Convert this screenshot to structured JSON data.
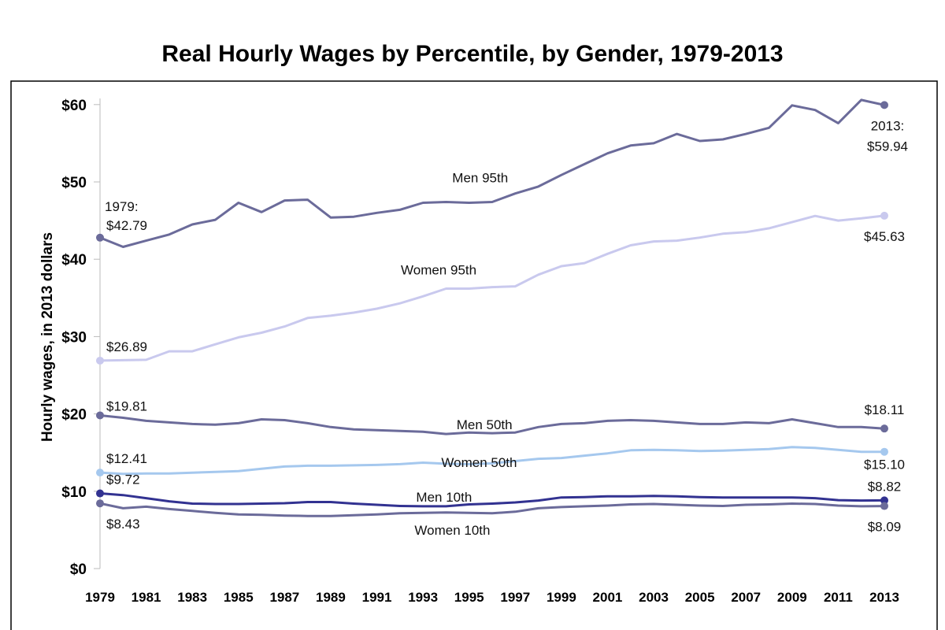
{
  "chart_data": {
    "type": "line",
    "title": "Real Hourly Wages by Percentile, by Gender, 1979-2013",
    "ylabel": "Hourly wages, in 2013 dollars",
    "xlabel": "",
    "x": [
      1979,
      1980,
      1981,
      1982,
      1983,
      1984,
      1985,
      1986,
      1987,
      1988,
      1989,
      1990,
      1991,
      1992,
      1993,
      1994,
      1995,
      1996,
      1997,
      1998,
      1999,
      2000,
      2001,
      2002,
      2003,
      2004,
      2005,
      2006,
      2007,
      2008,
      2009,
      2010,
      2011,
      2012,
      2013
    ],
    "xticks": [
      "1979",
      "1981",
      "1983",
      "1985",
      "1987",
      "1989",
      "1991",
      "1993",
      "1995",
      "1997",
      "1999",
      "2001",
      "2003",
      "2005",
      "2007",
      "2009",
      "2011",
      "2013"
    ],
    "yticks": [
      "$0",
      "$10",
      "$20",
      "$30",
      "$40",
      "$50",
      "$60"
    ],
    "ylim": [
      0,
      62
    ],
    "grid": false,
    "series": [
      {
        "name": "Men 95th",
        "color": "#6b6b9a",
        "values": [
          42.79,
          41.6,
          42.4,
          43.2,
          44.5,
          45.1,
          47.3,
          46.1,
          47.6,
          47.7,
          45.4,
          45.5,
          46.0,
          46.4,
          47.3,
          47.4,
          47.3,
          47.4,
          48.5,
          49.4,
          50.9,
          52.3,
          53.7,
          54.7,
          55.0,
          56.2,
          55.3,
          55.5,
          56.2,
          57.0,
          59.9,
          59.3,
          57.6,
          60.6,
          59.94
        ]
      },
      {
        "name": "Women 95th",
        "color": "#c9c9ee",
        "values": [
          26.89,
          26.95,
          27.0,
          28.1,
          28.1,
          29.0,
          29.9,
          30.5,
          31.3,
          32.4,
          32.7,
          33.1,
          33.6,
          34.3,
          35.2,
          36.2,
          36.2,
          36.4,
          36.5,
          38.0,
          39.1,
          39.5,
          40.7,
          41.8,
          42.3,
          42.4,
          42.8,
          43.3,
          43.5,
          44.0,
          44.8,
          45.6,
          45.0,
          45.3,
          45.63
        ]
      },
      {
        "name": "Men 50th",
        "color": "#6b6b9a",
        "values": [
          19.81,
          19.5,
          19.1,
          18.9,
          18.7,
          18.6,
          18.8,
          19.3,
          19.2,
          18.8,
          18.3,
          18.0,
          17.9,
          17.8,
          17.7,
          17.4,
          17.6,
          17.5,
          17.6,
          18.3,
          18.7,
          18.8,
          19.1,
          19.2,
          19.1,
          18.9,
          18.7,
          18.7,
          18.9,
          18.8,
          19.3,
          18.8,
          18.3,
          18.3,
          18.11
        ]
      },
      {
        "name": "Women 50th",
        "color": "#a5c8ee",
        "values": [
          12.41,
          12.25,
          12.3,
          12.3,
          12.4,
          12.5,
          12.6,
          12.9,
          13.2,
          13.3,
          13.3,
          13.35,
          13.4,
          13.5,
          13.7,
          13.55,
          13.5,
          13.6,
          13.9,
          14.2,
          14.3,
          14.6,
          14.9,
          15.3,
          15.35,
          15.3,
          15.2,
          15.25,
          15.35,
          15.45,
          15.7,
          15.6,
          15.35,
          15.1,
          15.1
        ]
      },
      {
        "name": "Men 10th",
        "color": "#323291",
        "values": [
          9.72,
          9.5,
          9.1,
          8.7,
          8.4,
          8.35,
          8.35,
          8.4,
          8.45,
          8.6,
          8.6,
          8.4,
          8.25,
          8.1,
          8.05,
          8.05,
          8.3,
          8.4,
          8.55,
          8.8,
          9.2,
          9.25,
          9.35,
          9.35,
          9.4,
          9.35,
          9.25,
          9.2,
          9.2,
          9.2,
          9.2,
          9.1,
          8.85,
          8.8,
          8.82
        ]
      },
      {
        "name": "Women 10th",
        "color": "#6b6b9a",
        "values": [
          8.43,
          7.8,
          8.0,
          7.7,
          7.45,
          7.2,
          7.0,
          6.95,
          6.85,
          6.8,
          6.8,
          6.9,
          7.0,
          7.15,
          7.2,
          7.25,
          7.2,
          7.15,
          7.35,
          7.8,
          7.95,
          8.05,
          8.15,
          8.3,
          8.35,
          8.25,
          8.15,
          8.1,
          8.25,
          8.3,
          8.4,
          8.35,
          8.15,
          8.05,
          8.09
        ]
      }
    ],
    "annotations": [
      {
        "text": "1979:",
        "x": 1979,
        "y": 42.79,
        "dx": 6,
        "dy": -34,
        "anchor": "start"
      },
      {
        "text": "$42.79",
        "x": 1979,
        "y": 42.79,
        "dx": 8,
        "dy": -10,
        "anchor": "start"
      },
      {
        "text": "2013:",
        "x": 2013,
        "y": 59.94,
        "dx": 4,
        "dy": 32,
        "anchor": "middle"
      },
      {
        "text": "$59.94",
        "x": 2013,
        "y": 59.94,
        "dx": 4,
        "dy": 58,
        "anchor": "middle"
      },
      {
        "text": "Men 95th",
        "x": 1997,
        "y": 48.5,
        "dx": -80,
        "dy": -14,
        "anchor": "start"
      },
      {
        "text": "$26.89",
        "x": 1979,
        "y": 26.89,
        "dx": 8,
        "dy": -12,
        "anchor": "start"
      },
      {
        "text": "$45.63",
        "x": 2013,
        "y": 45.63,
        "dx": 0,
        "dy": 32,
        "anchor": "middle"
      },
      {
        "text": "Women 95th",
        "x": 1996,
        "y": 36.4,
        "dx": -116,
        "dy": -16,
        "anchor": "start"
      },
      {
        "text": "$19.81",
        "x": 1979,
        "y": 19.81,
        "dx": 8,
        "dy": -6,
        "anchor": "start"
      },
      {
        "text": "$18.11",
        "x": 2013,
        "y": 18.11,
        "dx": 0,
        "dy": -18,
        "anchor": "middle"
      },
      {
        "text": "Men 50th",
        "x": 1995,
        "y": 17.6,
        "dx": -16,
        "dy": -4,
        "anchor": "start"
      },
      {
        "text": "$12.41",
        "x": 1979,
        "y": 12.41,
        "dx": 8,
        "dy": -12,
        "anchor": "start"
      },
      {
        "text": "$15.10",
        "x": 2013,
        "y": 15.1,
        "dx": 0,
        "dy": 22,
        "anchor": "middle"
      },
      {
        "text": "Women 50th",
        "x": 1994,
        "y": 13.55,
        "dx": -6,
        "dy": 4,
        "anchor": "start"
      },
      {
        "text": "$9.72",
        "x": 1979,
        "y": 9.72,
        "dx": 8,
        "dy": -12,
        "anchor": "start"
      },
      {
        "text": "$8.82",
        "x": 2013,
        "y": 8.82,
        "dx": 0,
        "dy": -12,
        "anchor": "middle"
      },
      {
        "text": "Men 10th",
        "x": 1994,
        "y": 8.05,
        "dx": -38,
        "dy": -6,
        "anchor": "start"
      },
      {
        "text": "$8.43",
        "x": 1979,
        "y": 8.43,
        "dx": 8,
        "dy": 32,
        "anchor": "start"
      },
      {
        "text": "$8.09",
        "x": 2013,
        "y": 8.09,
        "dx": 0,
        "dy": 32,
        "anchor": "middle"
      },
      {
        "text": "Women 10th",
        "x": 1994,
        "y": 7.25,
        "dx": -40,
        "dy": 28,
        "anchor": "start"
      }
    ]
  }
}
